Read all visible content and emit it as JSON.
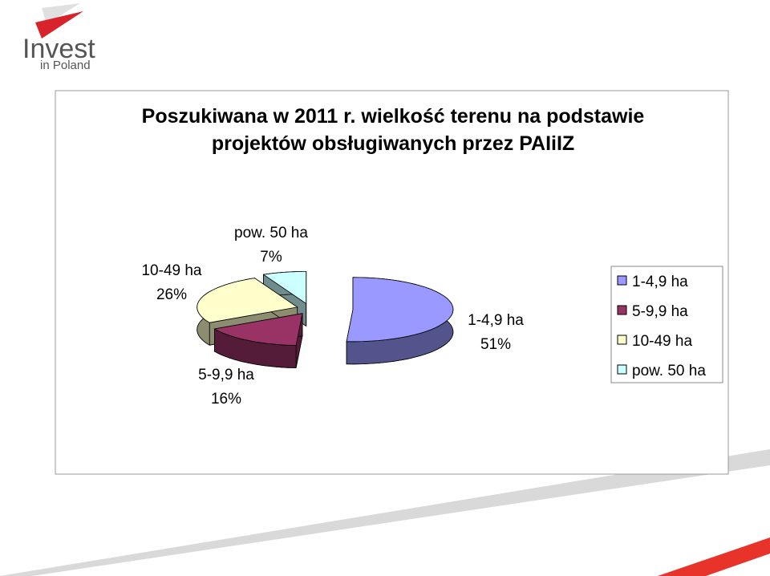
{
  "logo": {
    "line1": "Invest",
    "line2": "in Poland"
  },
  "chart_data": {
    "type": "pie3d",
    "title": "Poszukiwana w 2011 r. wielkość terenu na podstawie projektów obsługiwanych przez PAIiIZ",
    "categories": [
      "1-4,9 ha",
      "5-9,9 ha",
      "10-49 ha",
      "pow. 50 ha"
    ],
    "values": [
      51,
      16,
      26,
      7
    ],
    "value_labels": [
      "51%",
      "16%",
      "26%",
      "7%"
    ],
    "colors": [
      "#9999ff",
      "#993366",
      "#ffffcc",
      "#ccffff"
    ],
    "legend": "right"
  }
}
